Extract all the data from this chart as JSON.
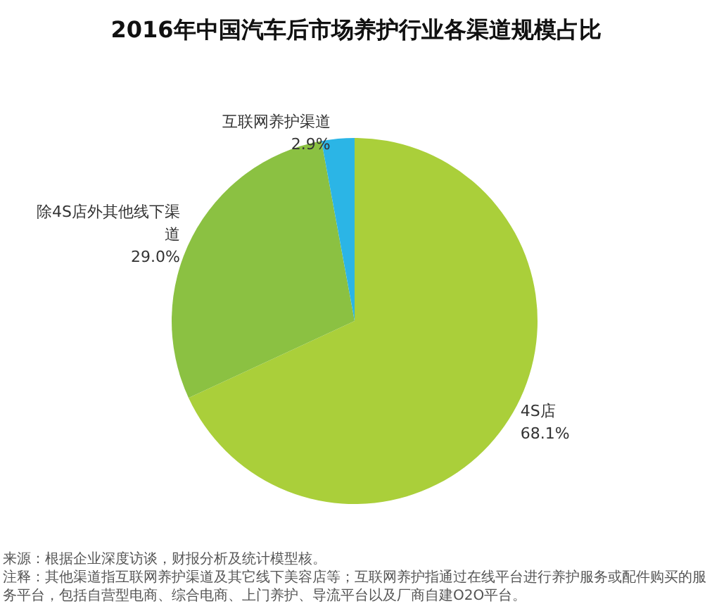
{
  "chart_data": {
    "type": "pie",
    "title": "2016年中国汽车后市场养护行业各渠道规模占比",
    "categories": [
      "4S店",
      "除4S店外其他线下渠道",
      "互联网养护渠道"
    ],
    "values": [
      68.1,
      29.0,
      2.9
    ],
    "colors": [
      "#aacf3a",
      "#8bc142",
      "#2bb5e6"
    ],
    "value_labels": [
      "68.1%",
      "29.0%",
      "2.9%"
    ],
    "legend": false,
    "annotations": [
      "来源：根据企业深度访谈，财报分析及统计模型核。",
      "注释：其他渠道指互联网养护渠道及其它线下美容店等；互联网养护指通过在线平台进行养护服务或配件购买的服务平台，包括自营型电商、综合电商、上门养护、导流平台以及厂商自建O2O平台。"
    ]
  }
}
